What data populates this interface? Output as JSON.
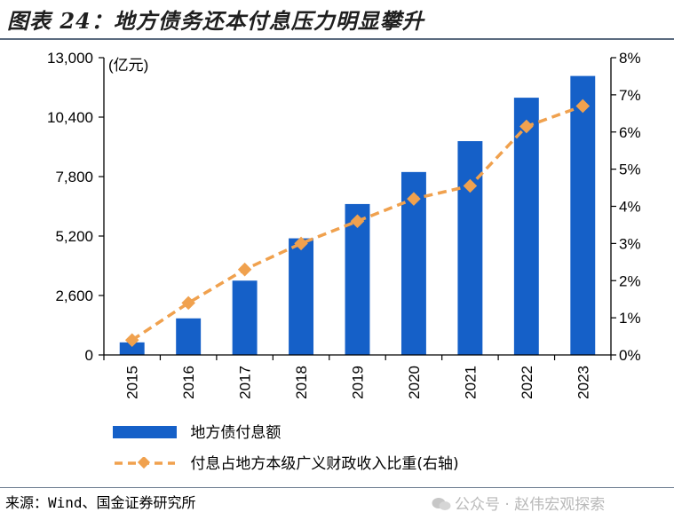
{
  "title": "图表 24：地方债务还本付息压力明显攀升",
  "unit_label": "(亿元)",
  "source": "来源：Wind、国金证券研究所",
  "watermark": "公众号 · 赵伟宏观探索",
  "colors": {
    "bar": "#1560c8",
    "line": "#f0a14e",
    "title": "#1f1f1f",
    "rule": "#5b6b7f"
  },
  "chart_data": {
    "type": "bar",
    "categories": [
      "2015",
      "2016",
      "2017",
      "2018",
      "2019",
      "2020",
      "2021",
      "2022",
      "2023"
    ],
    "series": [
      {
        "name": "地方债付息额",
        "type": "bar",
        "axis": "left",
        "values": [
          550,
          1600,
          3250,
          5100,
          6600,
          8000,
          9350,
          11250,
          12200
        ]
      },
      {
        "name": "付息占地方本级广义财政收入比重(右轴)",
        "type": "line",
        "axis": "right",
        "values": [
          0.4,
          1.4,
          2.3,
          3.0,
          3.6,
          4.2,
          4.55,
          6.15,
          6.7
        ]
      }
    ],
    "y_left": {
      "ticks": [
        "0",
        "2,600",
        "5,200",
        "7,800",
        "10,400",
        "13,000"
      ],
      "lim": [
        0,
        13000
      ]
    },
    "y_right": {
      "ticks": [
        "0%",
        "1%",
        "2%",
        "3%",
        "4%",
        "5%",
        "6%",
        "7%",
        "8%"
      ],
      "lim": [
        0,
        8
      ]
    },
    "legend": "bottom",
    "grid": false
  }
}
